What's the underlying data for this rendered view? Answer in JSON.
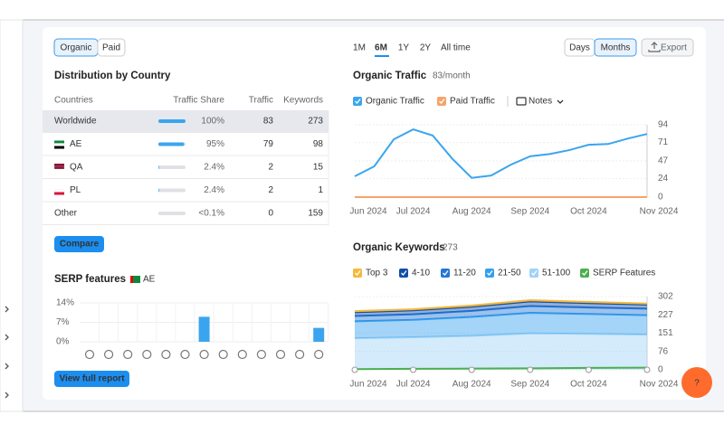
{
  "left": {
    "tabs": [
      "Organic",
      "Paid"
    ],
    "distribution": {
      "title": "Distribution by Country",
      "columns": [
        "Countries",
        "Traffic Share",
        "Traffic",
        "Keywords"
      ],
      "rows": [
        [
          "Worldwide",
          "100%",
          "83",
          "273"
        ],
        [
          "AE",
          "95%",
          "79",
          "98"
        ],
        [
          "QA",
          "2.4%",
          "2",
          "15"
        ],
        [
          "PL",
          "2.4%",
          "2",
          "1"
        ],
        [
          "Other",
          "<0.1%",
          "0",
          "159"
        ]
      ],
      "share_bars": [
        100,
        95,
        2.4,
        2.4,
        0.1
      ]
    },
    "compare": "Compare",
    "serp": {
      "title": "SERP features",
      "country": "AE",
      "chart": {
        "type": "bar",
        "color": "#3aa5ee",
        "values": [
          0,
          0,
          0,
          0,
          0,
          0,
          9,
          0,
          0,
          0,
          0,
          0,
          5
        ],
        "ylim": [
          0,
          14
        ],
        "yticks": [
          {
            "value": 0,
            "label": "0%"
          },
          {
            "value": 7,
            "label": "7%"
          },
          {
            "value": 14,
            "label": "14%"
          }
        ]
      }
    },
    "report": "View full report"
  },
  "right": {
    "periods": [
      "1M",
      "6M",
      "1Y",
      "2Y",
      "All time"
    ],
    "granularity": [
      "Days",
      "Months"
    ],
    "export": "Export",
    "notes": "Notes",
    "help": "?",
    "traffic": {
      "type": "line",
      "title": "Organic Traffic",
      "subtitle": "83/month",
      "categories": [
        "Jun 2024",
        null,
        null,
        "Jul 2024",
        null,
        null,
        "Aug 2024",
        null,
        null,
        "Sep 2024",
        null,
        null,
        "Oct 2024",
        null,
        null,
        "Nov 2024"
      ],
      "series": [
        {
          "name": "Organic Traffic",
          "color": "#3aa5ee",
          "values": [
            27,
            40,
            75,
            88,
            80,
            50,
            25,
            28,
            42,
            53,
            56,
            61,
            68,
            69,
            76,
            82
          ]
        },
        {
          "name": "Paid Traffic",
          "color": "#f5a468",
          "values": [
            0,
            0,
            0,
            0,
            0,
            0,
            0,
            0,
            0,
            0,
            0,
            0,
            0,
            0,
            0,
            0
          ]
        }
      ],
      "ylim": [
        0,
        94
      ],
      "yticks": [
        0,
        24,
        47,
        71,
        94
      ],
      "grid": true
    },
    "keywords": {
      "type": "area",
      "title": "Organic Keywords",
      "subtitle": "273",
      "stacked": true,
      "categories": [
        "Jun 2024",
        "Jul 2024",
        "Aug 2024",
        "Sep 2024",
        "Oct 2024",
        "Nov 2024"
      ],
      "series": [
        {
          "name": "Top 3",
          "color": "#f5b83d",
          "values": [
            5,
            5,
            5,
            5,
            5,
            4
          ]
        },
        {
          "name": "4-10",
          "color": "#0f4fa8",
          "values": [
            15,
            16,
            17,
            19,
            18,
            17
          ]
        },
        {
          "name": "11-20",
          "color": "#2477d6",
          "values": [
            22,
            23,
            25,
            28,
            27,
            27
          ]
        },
        {
          "name": "21-50",
          "color": "#35a0ef",
          "values": [
            70,
            72,
            78,
            85,
            82,
            80
          ]
        },
        {
          "name": "51-100",
          "color": "#9fd3f7",
          "values": [
            130,
            134,
            140,
            150,
            148,
            145
          ]
        },
        {
          "name": "SERP Features",
          "color": "#4caf50",
          "kind": "line",
          "values": [
            3,
            4,
            5,
            6,
            8,
            9
          ]
        }
      ],
      "ylim": [
        0,
        302
      ],
      "yticks": [
        0,
        76,
        151,
        227,
        302
      ],
      "grid": true
    }
  }
}
